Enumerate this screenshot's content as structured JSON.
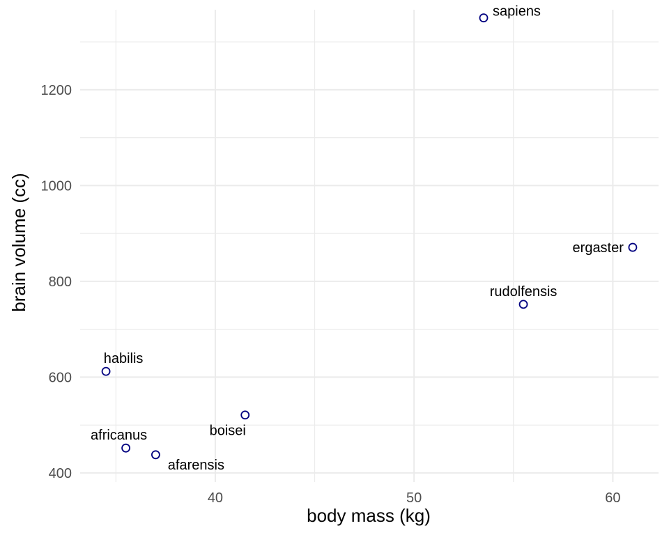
{
  "chart_data": {
    "type": "scatter",
    "xlabel": "body mass (kg)",
    "ylabel": "brain volume (cc)",
    "xlim": [
      33.2,
      62.3
    ],
    "ylim": [
      381,
      1367
    ],
    "x_ticks": [
      40,
      50,
      60
    ],
    "y_ticks": [
      400,
      600,
      800,
      1000,
      1200
    ],
    "x_tick_labels": [
      "40",
      "50",
      "60"
    ],
    "y_tick_labels": [
      "400",
      "600",
      "800",
      "1000",
      "1200"
    ],
    "grid": true,
    "point_color": "#000080",
    "points": [
      {
        "label": "afarensis",
        "x": 37.0,
        "y": 438,
        "label_pos": "below-right"
      },
      {
        "label": "africanus",
        "x": 35.5,
        "y": 452,
        "label_pos": "above-left"
      },
      {
        "label": "habilis",
        "x": 34.5,
        "y": 612,
        "label_pos": "above-right"
      },
      {
        "label": "boisei",
        "x": 41.5,
        "y": 521,
        "label_pos": "below-left"
      },
      {
        "label": "rudolfensis",
        "x": 55.5,
        "y": 752,
        "label_pos": "above"
      },
      {
        "label": "ergaster",
        "x": 61.0,
        "y": 871,
        "label_pos": "left"
      },
      {
        "label": "sapiens",
        "x": 53.5,
        "y": 1350,
        "label_pos": "right"
      }
    ]
  }
}
